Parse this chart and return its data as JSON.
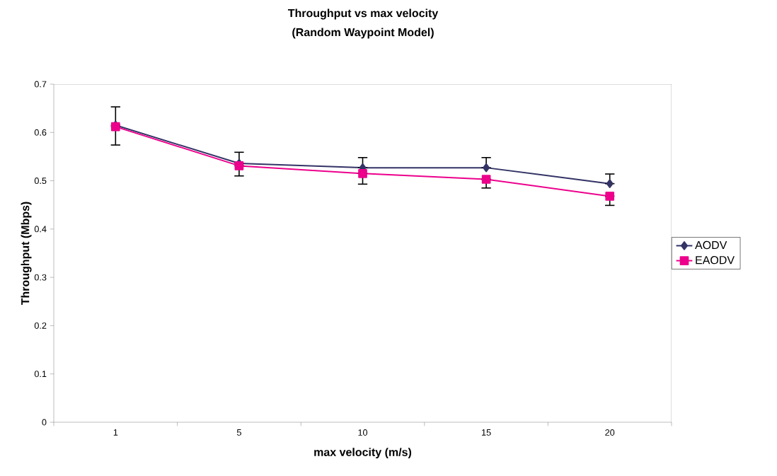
{
  "chart_data": {
    "type": "line",
    "title": "Throughput vs max velocity",
    "subtitle": "(Random Waypoint Model)",
    "xlabel": "max velocity (m/s)",
    "ylabel": "Throughput (Mbps)",
    "categories": [
      "1",
      "5",
      "10",
      "15",
      "20"
    ],
    "series": [
      {
        "name": "AODV",
        "color": "#333366",
        "marker": "diamond",
        "values": [
          0.615,
          0.536,
          0.527,
          0.527,
          0.494
        ],
        "errors": [
          [
            0.615,
            0.653
          ],
          [
            0.536,
            0.559
          ],
          [
            0.527,
            0.548
          ],
          [
            0.527,
            0.548
          ],
          [
            0.494,
            0.514
          ]
        ]
      },
      {
        "name": "EAODV",
        "color": "#ec008c",
        "marker": "square",
        "values": [
          0.612,
          0.531,
          0.515,
          0.503,
          0.468
        ],
        "errors": [
          [
            0.574,
            0.612
          ],
          [
            0.51,
            0.531
          ],
          [
            0.493,
            0.515
          ],
          [
            0.485,
            0.503
          ],
          [
            0.449,
            0.468
          ]
        ]
      }
    ],
    "ylim": [
      0,
      0.7
    ],
    "yticks": [
      0,
      0.1,
      0.2,
      0.3,
      0.4,
      0.5,
      0.6,
      0.7
    ],
    "grid": false,
    "legend": "right"
  }
}
